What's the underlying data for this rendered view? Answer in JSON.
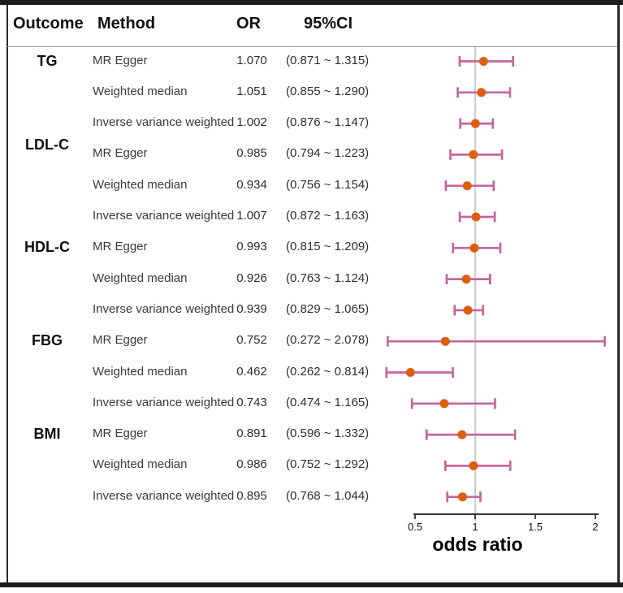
{
  "header": {
    "outcome": "Outcome",
    "method": "Method",
    "or": "OR",
    "ci": "95%CI"
  },
  "chart_data": {
    "type": "scatter",
    "subtype": "forest-plot",
    "xlabel": "odds ratio",
    "xlim": [
      0.5,
      2
    ],
    "xticks": [
      0.5,
      1,
      1.5,
      2
    ],
    "xtick_labels": [
      "0.5",
      "1",
      "1.5",
      "2"
    ],
    "reference_line": 1,
    "legend_position": "none",
    "grid": false,
    "columns": [
      "Outcome",
      "Method",
      "OR",
      "95%CI"
    ],
    "rows": [
      {
        "outcome": "TG",
        "method": "MR Egger",
        "or": "1.070",
        "or_value": 1.07,
        "ci": "(0.871 ~ 1.315)",
        "ci_low": 0.871,
        "ci_high": 1.315
      },
      {
        "outcome": "",
        "method": "Weighted median",
        "or": "1.051",
        "or_value": 1.051,
        "ci": "(0.855 ~ 1.290)",
        "ci_low": 0.855,
        "ci_high": 1.29
      },
      {
        "outcome": "",
        "method": "Inverse variance weighted",
        "or": "1.002",
        "or_value": 1.002,
        "ci": "(0.876 ~ 1.147)",
        "ci_low": 0.876,
        "ci_high": 1.147
      },
      {
        "outcome": "LDL-C",
        "method": "MR Egger",
        "or": "0.985",
        "or_value": 0.985,
        "ci": "(0.794 ~ 1.223)",
        "ci_low": 0.794,
        "ci_high": 1.223
      },
      {
        "outcome": "",
        "method": "Weighted median",
        "or": "0.934",
        "or_value": 0.934,
        "ci": "(0.756 ~ 1.154)",
        "ci_low": 0.756,
        "ci_high": 1.154
      },
      {
        "outcome": "",
        "method": "Inverse variance weighted",
        "or": "1.007",
        "or_value": 1.007,
        "ci": "(0.872 ~ 1.163)",
        "ci_low": 0.872,
        "ci_high": 1.163
      },
      {
        "outcome": "HDL-C",
        "method": "MR Egger",
        "or": "0.993",
        "or_value": 0.993,
        "ci": "(0.815 ~ 1.209)",
        "ci_low": 0.815,
        "ci_high": 1.209
      },
      {
        "outcome": "",
        "method": "Weighted median",
        "or": "0.926",
        "or_value": 0.926,
        "ci": "(0.763 ~ 1.124)",
        "ci_low": 0.763,
        "ci_high": 1.124
      },
      {
        "outcome": "",
        "method": "Inverse variance weighted",
        "or": "0.939",
        "or_value": 0.939,
        "ci": "(0.829 ~ 1.065)",
        "ci_low": 0.829,
        "ci_high": 1.065
      },
      {
        "outcome": "FBG",
        "method": "MR Egger",
        "or": "0.752",
        "or_value": 0.752,
        "ci": "(0.272 ~ 2.078)",
        "ci_low": 0.272,
        "ci_high": 2.078
      },
      {
        "outcome": "",
        "method": "Weighted median",
        "or": "0.462",
        "or_value": 0.462,
        "ci": "(0.262 ~ 0.814)",
        "ci_low": 0.262,
        "ci_high": 0.814
      },
      {
        "outcome": "",
        "method": "Inverse variance weighted",
        "or": "0.743",
        "or_value": 0.743,
        "ci": "(0.474 ~ 1.165)",
        "ci_low": 0.474,
        "ci_high": 1.165
      },
      {
        "outcome": "BMI",
        "method": "MR Egger",
        "or": "0.891",
        "or_value": 0.891,
        "ci": "(0.596 ~ 1.332)",
        "ci_low": 0.596,
        "ci_high": 1.332
      },
      {
        "outcome": "",
        "method": "Weighted median",
        "or": "0.986",
        "or_value": 0.986,
        "ci": "(0.752 ~ 1.292)",
        "ci_low": 0.752,
        "ci_high": 1.292
      },
      {
        "outcome": "",
        "method": "Inverse variance weighted",
        "or": "0.895",
        "or_value": 0.895,
        "ci": "(0.768 ~ 1.044)",
        "ci_low": 0.768,
        "ci_high": 1.044
      }
    ],
    "colors": {
      "point": "#dc5e13",
      "error_bar": "#c3679c",
      "reference_line": "#cccccc",
      "axis": "#1c1c1c",
      "frame": "#1c1c1c"
    }
  }
}
